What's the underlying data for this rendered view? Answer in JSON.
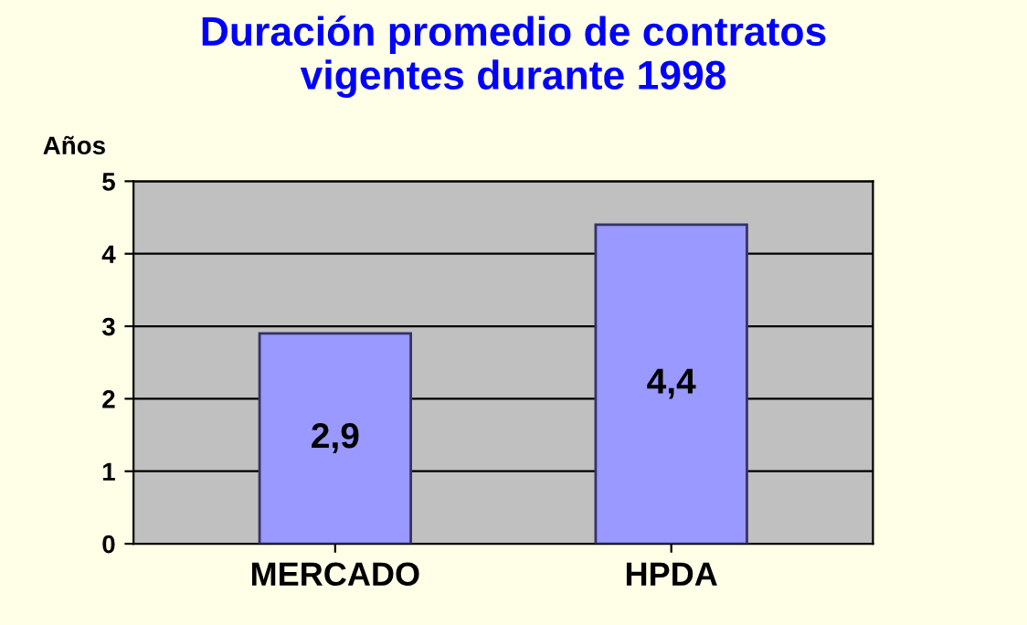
{
  "chart_data": {
    "type": "bar",
    "title": "Duración promedio de contratos\nvigentes durante 1998",
    "ylabel": "Años",
    "categories": [
      "MERCADO",
      "HPDA"
    ],
    "values": [
      2.9,
      4.4
    ],
    "value_labels": [
      "2,9",
      "4,4"
    ],
    "color": "#9999ff",
    "ylim": [
      0,
      5
    ],
    "yticks": [
      0,
      1,
      2,
      3,
      4,
      5
    ],
    "grid": "y",
    "legend": false
  }
}
